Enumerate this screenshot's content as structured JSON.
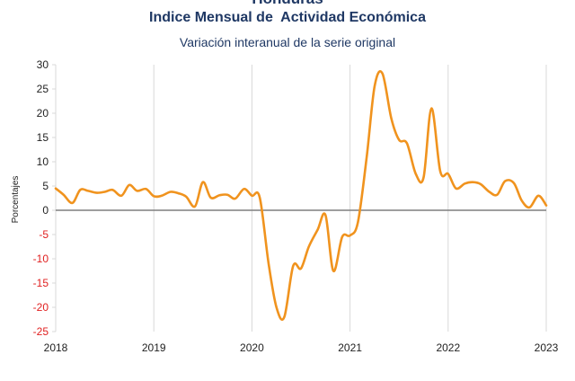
{
  "header": {
    "cut_title": "Honduras",
    "title": "Indice Mensual de  Actividad Económica",
    "subtitle": "Variación interanual de la serie original"
  },
  "colors": {
    "line": "#f0931e",
    "zero_line": "#7f7f7f",
    "grid": "#d9d9d9",
    "positive_tick": "#222222",
    "negative_tick": "#e02020",
    "title": "#1f3864"
  },
  "chart_data": {
    "type": "line",
    "title": "Variación interanual de la serie original",
    "xlabel": "",
    "ylabel": "Porcentajes",
    "xlim": [
      2018.0,
      2023.0
    ],
    "ylim": [
      -25,
      30
    ],
    "y_ticks": [
      30,
      25,
      20,
      15,
      10,
      5,
      0,
      -5,
      -10,
      -15,
      -20,
      -25
    ],
    "x_ticks": [
      "2018",
      "2019",
      "2020",
      "2021",
      "2022",
      "2023"
    ],
    "grid": "vertical",
    "legend": "none",
    "series": [
      {
        "x": [
          2018.0,
          2018.08,
          2018.17,
          2018.25,
          2018.33,
          2018.42,
          2018.5,
          2018.58,
          2018.67,
          2018.75,
          2018.83,
          2018.92,
          2019.0,
          2019.08,
          2019.17,
          2019.25,
          2019.33,
          2019.42,
          2019.5,
          2019.58,
          2019.67,
          2019.75,
          2019.83,
          2019.92,
          2020.0,
          2020.08,
          2020.17,
          2020.25,
          2020.33,
          2020.42,
          2020.5,
          2020.58,
          2020.67,
          2020.75,
          2020.83,
          2020.92,
          2021.0,
          2021.08,
          2021.17,
          2021.25,
          2021.33,
          2021.42,
          2021.5,
          2021.58,
          2021.67,
          2021.75,
          2021.83,
          2021.92,
          2022.0,
          2022.08,
          2022.17,
          2022.25,
          2022.33,
          2022.42,
          2022.5,
          2022.58,
          2022.67,
          2022.75,
          2022.83,
          2022.92,
          2023.0
        ],
        "y": [
          4.5,
          3.2,
          1.5,
          4.2,
          4.0,
          3.6,
          3.8,
          4.2,
          3.0,
          5.2,
          4.0,
          4.4,
          2.9,
          3.0,
          3.8,
          3.5,
          2.8,
          0.8,
          5.8,
          2.6,
          3.1,
          3.2,
          2.4,
          4.4,
          3.0,
          2.6,
          -11.0,
          -20.0,
          -22.0,
          -11.5,
          -12.0,
          -7.5,
          -4.0,
          -1.0,
          -12.5,
          -5.5,
          -5.2,
          -2.5,
          11.0,
          25.5,
          28.2,
          19.0,
          14.5,
          13.8,
          7.5,
          6.8,
          21.0,
          8.0,
          7.5,
          4.5,
          5.5,
          5.8,
          5.4,
          3.8,
          3.2,
          6.0,
          5.6,
          2.0,
          0.6,
          3.0,
          1.0
        ]
      }
    ]
  }
}
